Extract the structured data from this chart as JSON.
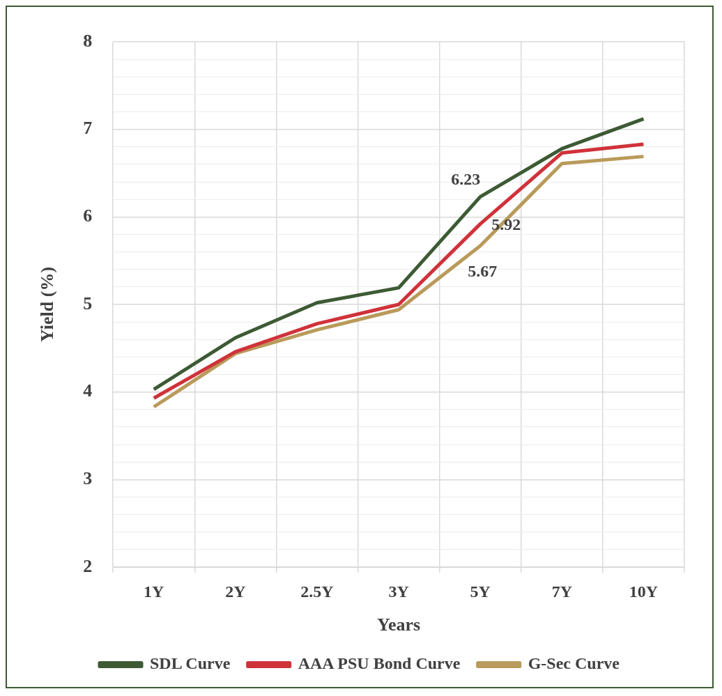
{
  "chart_data": {
    "type": "line",
    "xlabel": "Years",
    "ylabel": "Yield (%)",
    "categories": [
      "1Y",
      "2Y",
      "2.5Y",
      "3Y",
      "5Y",
      "7Y",
      "10Y"
    ],
    "series": [
      {
        "name": "SDL Curve",
        "color": "#3d5a35",
        "values": [
          4.03,
          4.62,
          5.02,
          5.19,
          6.23,
          6.78,
          7.12
        ],
        "value_labels": [
          null,
          null,
          null,
          null,
          "6.23",
          null,
          null
        ]
      },
      {
        "name": "AAA PSU Bond Curve",
        "color": "#d0323a",
        "values": [
          3.93,
          4.46,
          4.78,
          5.0,
          5.92,
          6.73,
          6.83
        ],
        "value_labels": [
          null,
          null,
          null,
          null,
          "5.92",
          null,
          null
        ]
      },
      {
        "name": "G-Sec Curve",
        "color": "#b99a5a",
        "values": [
          3.83,
          4.44,
          4.71,
          4.94,
          5.67,
          6.61,
          6.69
        ],
        "value_labels": [
          null,
          null,
          null,
          null,
          "5.67",
          null,
          null
        ]
      }
    ],
    "ylim": [
      2,
      8
    ],
    "yticks": [
      2,
      {
        "value": 2.2,
        "label": null
      },
      {
        "value": 2.4,
        "label": null
      },
      {
        "value": 2.6,
        "label": null
      },
      {
        "value": 2.8,
        "label": null
      },
      3,
      {
        "value": 3.2,
        "label": null
      },
      {
        "value": 3.4,
        "label": null
      },
      {
        "value": 3.6,
        "label": null
      },
      {
        "value": 3.8,
        "label": null
      },
      4,
      {
        "value": 4.2,
        "label": null
      },
      {
        "value": 4.4,
        "label": null
      },
      {
        "value": 4.6,
        "label": null
      },
      {
        "value": 4.8,
        "label": null
      },
      5,
      {
        "value": 5.2,
        "label": null
      },
      {
        "value": 5.4,
        "label": null
      },
      {
        "value": 5.6,
        "label": null
      },
      {
        "value": 5.8,
        "label": null
      },
      6,
      {
        "value": 6.2,
        "label": null
      },
      {
        "value": 6.4,
        "label": null
      },
      {
        "value": 6.6,
        "label": null
      },
      {
        "value": 6.8,
        "label": null
      },
      7,
      {
        "value": 7.2,
        "label": null
      },
      {
        "value": 7.4,
        "label": null
      },
      {
        "value": 7.6,
        "label": null
      },
      {
        "value": 7.8,
        "label": null
      },
      8
    ],
    "grid": true,
    "legend": "bottom",
    "marker": "none",
    "line_style": "solid"
  }
}
